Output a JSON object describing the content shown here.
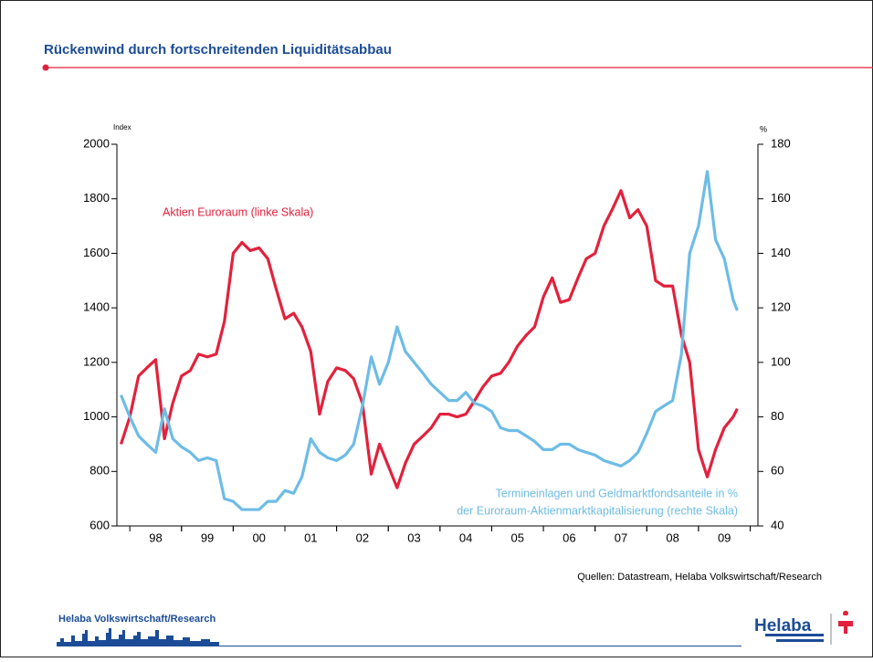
{
  "header": {
    "title": "Rückenwind durch fortschreitenden Liquiditätsabbau"
  },
  "chart_data": {
    "type": "line",
    "y_label": "Index",
    "y2_label": "%",
    "annotations": [
      "Aktien Euroraum (linke Skala)",
      "Termineinlagen und Geldmarktfondsanteile in %",
      "der Euroraum-Aktienmarktkapitalisierung (rechte Skala)"
    ],
    "x": [
      1997.83,
      1998,
      1998.17,
      1998.33,
      1998.5,
      1998.67,
      1998.83,
      1999,
      1999.17,
      1999.33,
      1999.5,
      1999.67,
      1999.83,
      2000,
      2000.17,
      2000.33,
      2000.5,
      2000.67,
      2000.83,
      2001,
      2001.17,
      2001.33,
      2001.5,
      2001.67,
      2001.83,
      2002,
      2002.17,
      2002.33,
      2002.5,
      2002.67,
      2002.83,
      2003,
      2003.17,
      2003.33,
      2003.5,
      2003.67,
      2003.83,
      2004,
      2004.17,
      2004.33,
      2004.5,
      2004.67,
      2004.83,
      2005,
      2005.17,
      2005.33,
      2005.5,
      2005.67,
      2005.83,
      2006,
      2006.17,
      2006.33,
      2006.5,
      2006.67,
      2006.83,
      2007,
      2007.17,
      2007.33,
      2007.5,
      2007.67,
      2007.83,
      2008,
      2008.17,
      2008.33,
      2008.5,
      2008.67,
      2008.83,
      2009,
      2009.17,
      2009.33,
      2009.5,
      2009.67,
      2009.75
    ],
    "series": [
      {
        "color": "#e3213c",
        "axis": "y",
        "values": [
          900,
          1000,
          1150,
          1180,
          1210,
          920,
          1050,
          1150,
          1170,
          1230,
          1220,
          1230,
          1350,
          1600,
          1640,
          1610,
          1620,
          1580,
          1470,
          1360,
          1380,
          1330,
          1240,
          1010,
          1130,
          1180,
          1170,
          1140,
          1050,
          790,
          900,
          820,
          740,
          830,
          900,
          930,
          960,
          1010,
          1010,
          1000,
          1010,
          1060,
          1110,
          1150,
          1160,
          1200,
          1260,
          1300,
          1330,
          1440,
          1510,
          1420,
          1430,
          1510,
          1580,
          1600,
          1700,
          1760,
          1830,
          1730,
          1760,
          1700,
          1500,
          1480,
          1480,
          1300,
          1200,
          880,
          780,
          880,
          960,
          1000,
          1030
        ]
      },
      {
        "color": "#6dbce6",
        "axis": "y2",
        "values": [
          88,
          80,
          73,
          70,
          67,
          83,
          72,
          69,
          67,
          64,
          65,
          64,
          50,
          49,
          46,
          46,
          46,
          49,
          49,
          53,
          52,
          58,
          72,
          67,
          65,
          64,
          66,
          70,
          84,
          102,
          92,
          100,
          113,
          104,
          100,
          96,
          92,
          89,
          86,
          86,
          89,
          85,
          84,
          82,
          76,
          75,
          75,
          73,
          71,
          68,
          68,
          70,
          70,
          68,
          67,
          66,
          64,
          63,
          62,
          64,
          67,
          74,
          82,
          84,
          86,
          103,
          140,
          150,
          170,
          145,
          138,
          123,
          119
        ]
      }
    ],
    "xlim": [
      1997.75,
      2010.15
    ],
    "xticks": [
      {
        "value": 1998.5,
        "label": "98"
      },
      {
        "value": 1999.5,
        "label": "99"
      },
      {
        "value": 2000.5,
        "label": "00"
      },
      {
        "value": 2001.5,
        "label": "01"
      },
      {
        "value": 2002.5,
        "label": "02"
      },
      {
        "value": 2003.5,
        "label": "03"
      },
      {
        "value": 2004.5,
        "label": "04"
      },
      {
        "value": 2005.5,
        "label": "05"
      },
      {
        "value": 2006.5,
        "label": "06"
      },
      {
        "value": 2007.5,
        "label": "07"
      },
      {
        "value": 2008.5,
        "label": "08"
      },
      {
        "value": 2009.5,
        "label": "09"
      }
    ],
    "ylim": [
      600,
      2000
    ],
    "yticks": [
      600,
      800,
      1000,
      1200,
      1400,
      1600,
      1800,
      2000
    ],
    "y2lim": [
      40,
      180
    ],
    "y2ticks": [
      40,
      60,
      80,
      100,
      120,
      140,
      160,
      180
    ],
    "grid": false
  },
  "source": "Quellen: Datastream, Helaba Volkswirtschaft/Research",
  "footer": {
    "brand": "Helaba Volkswirtschaft/Research",
    "logo": "Helaba"
  }
}
